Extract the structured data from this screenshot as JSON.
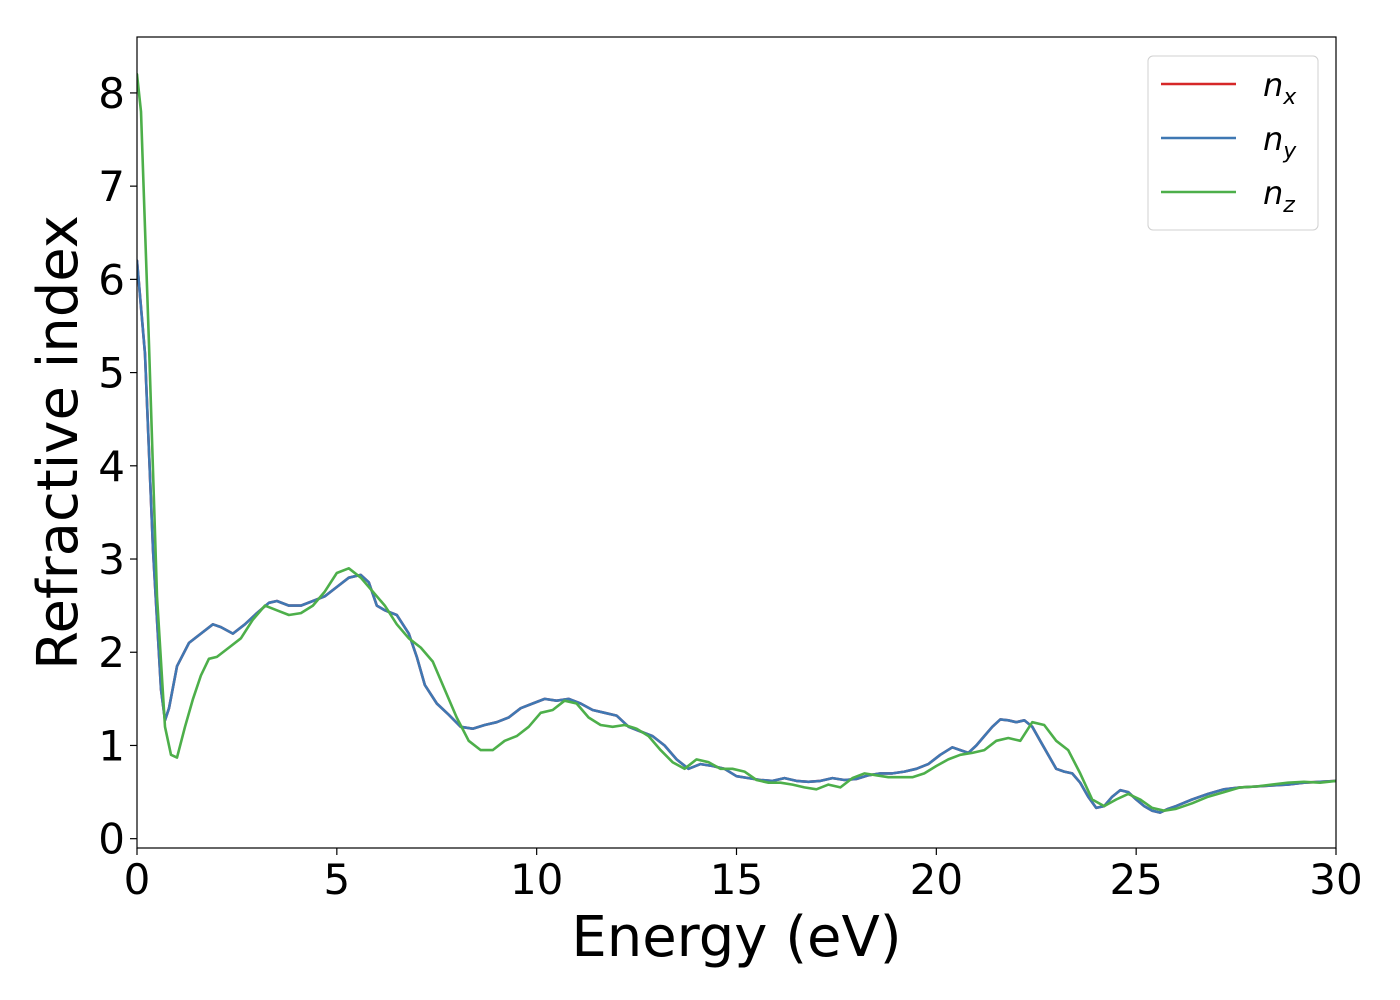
{
  "chart_data": {
    "type": "line",
    "xlabel": "Energy (eV)",
    "ylabel": "Refractive index",
    "xlim": [
      0,
      30
    ],
    "ylim": [
      -0.1,
      8.6
    ],
    "xticks": [
      0,
      5,
      10,
      15,
      20,
      25,
      30
    ],
    "yticks": [
      0,
      1,
      2,
      3,
      4,
      5,
      6,
      7,
      8
    ],
    "grid": false,
    "legend_position": "top-right",
    "series": [
      {
        "name": "n",
        "subscript": "x",
        "color": "#d62728",
        "x": [
          0,
          0.2,
          0.4,
          0.6,
          0.7,
          0.8,
          1.0,
          1.3,
          1.6,
          1.9,
          2.1,
          2.4,
          2.7,
          3.0,
          3.3,
          3.5,
          3.8,
          4.1,
          4.4,
          4.7,
          5.0,
          5.3,
          5.6,
          5.8,
          6.0,
          6.2,
          6.5,
          6.8,
          7.0,
          7.2,
          7.5,
          7.8,
          8.1,
          8.4,
          8.7,
          9.0,
          9.3,
          9.6,
          9.9,
          10.2,
          10.5,
          10.8,
          11.1,
          11.4,
          11.7,
          12.0,
          12.3,
          12.6,
          12.9,
          13.2,
          13.5,
          13.8,
          14.1,
          14.4,
          14.7,
          15.0,
          15.3,
          15.6,
          15.9,
          16.2,
          16.5,
          16.8,
          17.1,
          17.4,
          17.7,
          18.0,
          18.3,
          18.6,
          18.9,
          19.2,
          19.5,
          19.8,
          20.1,
          20.4,
          20.6,
          20.8,
          21.0,
          21.2,
          21.4,
          21.6,
          21.8,
          22.0,
          22.2,
          22.4,
          22.6,
          22.8,
          23.0,
          23.2,
          23.4,
          23.6,
          23.8,
          24.0,
          24.2,
          24.4,
          24.6,
          24.8,
          25.0,
          25.2,
          25.4,
          25.6,
          25.8,
          26.0,
          26.4,
          26.8,
          27.2,
          27.6,
          28.0,
          28.4,
          28.8,
          29.2,
          29.6,
          30.0
        ],
        "values": [
          6.2,
          5.2,
          3.1,
          1.6,
          1.27,
          1.4,
          1.85,
          2.1,
          2.2,
          2.3,
          2.27,
          2.2,
          2.3,
          2.42,
          2.53,
          2.55,
          2.5,
          2.5,
          2.55,
          2.6,
          2.7,
          2.8,
          2.83,
          2.75,
          2.5,
          2.45,
          2.4,
          2.2,
          1.95,
          1.65,
          1.45,
          1.33,
          1.2,
          1.18,
          1.22,
          1.25,
          1.3,
          1.4,
          1.45,
          1.5,
          1.48,
          1.5,
          1.45,
          1.38,
          1.35,
          1.32,
          1.2,
          1.15,
          1.1,
          1.0,
          0.85,
          0.75,
          0.8,
          0.78,
          0.75,
          0.67,
          0.65,
          0.63,
          0.62,
          0.65,
          0.62,
          0.61,
          0.62,
          0.65,
          0.63,
          0.64,
          0.68,
          0.7,
          0.7,
          0.72,
          0.75,
          0.8,
          0.9,
          0.98,
          0.95,
          0.92,
          1.0,
          1.1,
          1.2,
          1.28,
          1.27,
          1.25,
          1.27,
          1.2,
          1.05,
          0.9,
          0.75,
          0.72,
          0.7,
          0.6,
          0.45,
          0.33,
          0.35,
          0.45,
          0.52,
          0.5,
          0.42,
          0.35,
          0.3,
          0.28,
          0.32,
          0.35,
          0.42,
          0.48,
          0.53,
          0.55,
          0.56,
          0.57,
          0.58,
          0.6,
          0.61,
          0.62
        ]
      },
      {
        "name": "n",
        "subscript": "y",
        "color": "#3f78b3",
        "x": [
          0,
          0.2,
          0.4,
          0.6,
          0.7,
          0.8,
          1.0,
          1.3,
          1.6,
          1.9,
          2.1,
          2.4,
          2.7,
          3.0,
          3.3,
          3.5,
          3.8,
          4.1,
          4.4,
          4.7,
          5.0,
          5.3,
          5.6,
          5.8,
          6.0,
          6.2,
          6.5,
          6.8,
          7.0,
          7.2,
          7.5,
          7.8,
          8.1,
          8.4,
          8.7,
          9.0,
          9.3,
          9.6,
          9.9,
          10.2,
          10.5,
          10.8,
          11.1,
          11.4,
          11.7,
          12.0,
          12.3,
          12.6,
          12.9,
          13.2,
          13.5,
          13.8,
          14.1,
          14.4,
          14.7,
          15.0,
          15.3,
          15.6,
          15.9,
          16.2,
          16.5,
          16.8,
          17.1,
          17.4,
          17.7,
          18.0,
          18.3,
          18.6,
          18.9,
          19.2,
          19.5,
          19.8,
          20.1,
          20.4,
          20.6,
          20.8,
          21.0,
          21.2,
          21.4,
          21.6,
          21.8,
          22.0,
          22.2,
          22.4,
          22.6,
          22.8,
          23.0,
          23.2,
          23.4,
          23.6,
          23.8,
          24.0,
          24.2,
          24.4,
          24.6,
          24.8,
          25.0,
          25.2,
          25.4,
          25.6,
          25.8,
          26.0,
          26.4,
          26.8,
          27.2,
          27.6,
          28.0,
          28.4,
          28.8,
          29.2,
          29.6,
          30.0
        ],
        "values": [
          6.2,
          5.2,
          3.1,
          1.6,
          1.27,
          1.4,
          1.85,
          2.1,
          2.2,
          2.3,
          2.27,
          2.2,
          2.3,
          2.42,
          2.53,
          2.55,
          2.5,
          2.5,
          2.55,
          2.6,
          2.7,
          2.8,
          2.83,
          2.75,
          2.5,
          2.45,
          2.4,
          2.2,
          1.95,
          1.65,
          1.45,
          1.33,
          1.2,
          1.18,
          1.22,
          1.25,
          1.3,
          1.4,
          1.45,
          1.5,
          1.48,
          1.5,
          1.45,
          1.38,
          1.35,
          1.32,
          1.2,
          1.15,
          1.1,
          1.0,
          0.85,
          0.75,
          0.8,
          0.78,
          0.75,
          0.67,
          0.65,
          0.63,
          0.62,
          0.65,
          0.62,
          0.61,
          0.62,
          0.65,
          0.63,
          0.64,
          0.68,
          0.7,
          0.7,
          0.72,
          0.75,
          0.8,
          0.9,
          0.98,
          0.95,
          0.92,
          1.0,
          1.1,
          1.2,
          1.28,
          1.27,
          1.25,
          1.27,
          1.2,
          1.05,
          0.9,
          0.75,
          0.72,
          0.7,
          0.6,
          0.45,
          0.33,
          0.35,
          0.45,
          0.52,
          0.5,
          0.42,
          0.35,
          0.3,
          0.28,
          0.32,
          0.35,
          0.42,
          0.48,
          0.53,
          0.55,
          0.56,
          0.57,
          0.58,
          0.6,
          0.61,
          0.62
        ]
      },
      {
        "name": "n",
        "subscript": "z",
        "color": "#4daf4a",
        "x": [
          0,
          0.1,
          0.3,
          0.5,
          0.7,
          0.85,
          1.0,
          1.2,
          1.4,
          1.6,
          1.8,
          2.0,
          2.3,
          2.6,
          2.9,
          3.2,
          3.5,
          3.8,
          4.1,
          4.4,
          4.7,
          5.0,
          5.3,
          5.6,
          5.9,
          6.2,
          6.5,
          6.8,
          7.1,
          7.4,
          7.7,
          8.0,
          8.3,
          8.6,
          8.9,
          9.2,
          9.5,
          9.8,
          10.1,
          10.4,
          10.7,
          11.0,
          11.3,
          11.6,
          11.9,
          12.2,
          12.5,
          12.8,
          13.1,
          13.4,
          13.7,
          14.0,
          14.3,
          14.6,
          14.9,
          15.2,
          15.5,
          15.8,
          16.1,
          16.4,
          16.7,
          17.0,
          17.3,
          17.6,
          17.9,
          18.2,
          18.5,
          18.8,
          19.1,
          19.4,
          19.7,
          20.0,
          20.3,
          20.6,
          20.9,
          21.2,
          21.5,
          21.8,
          22.1,
          22.4,
          22.7,
          23.0,
          23.3,
          23.6,
          23.9,
          24.2,
          24.5,
          24.8,
          25.1,
          25.4,
          25.7,
          26.0,
          26.4,
          26.8,
          27.2,
          27.6,
          28.0,
          28.4,
          28.8,
          29.2,
          29.6,
          30.0
        ],
        "values": [
          8.2,
          7.8,
          5.3,
          2.6,
          1.2,
          0.9,
          0.87,
          1.2,
          1.5,
          1.75,
          1.93,
          1.95,
          2.05,
          2.15,
          2.35,
          2.5,
          2.45,
          2.4,
          2.42,
          2.5,
          2.65,
          2.85,
          2.9,
          2.8,
          2.65,
          2.5,
          2.3,
          2.15,
          2.05,
          1.9,
          1.6,
          1.3,
          1.05,
          0.95,
          0.95,
          1.05,
          1.1,
          1.2,
          1.35,
          1.38,
          1.48,
          1.45,
          1.3,
          1.22,
          1.2,
          1.22,
          1.18,
          1.1,
          0.95,
          0.82,
          0.75,
          0.85,
          0.82,
          0.75,
          0.75,
          0.72,
          0.63,
          0.6,
          0.6,
          0.58,
          0.55,
          0.53,
          0.58,
          0.55,
          0.65,
          0.7,
          0.68,
          0.66,
          0.66,
          0.66,
          0.7,
          0.78,
          0.85,
          0.9,
          0.92,
          0.95,
          1.05,
          1.08,
          1.05,
          1.25,
          1.22,
          1.05,
          0.95,
          0.7,
          0.42,
          0.35,
          0.42,
          0.48,
          0.42,
          0.33,
          0.3,
          0.32,
          0.38,
          0.45,
          0.5,
          0.55,
          0.56,
          0.58,
          0.6,
          0.61,
          0.6,
          0.62
        ]
      }
    ]
  }
}
